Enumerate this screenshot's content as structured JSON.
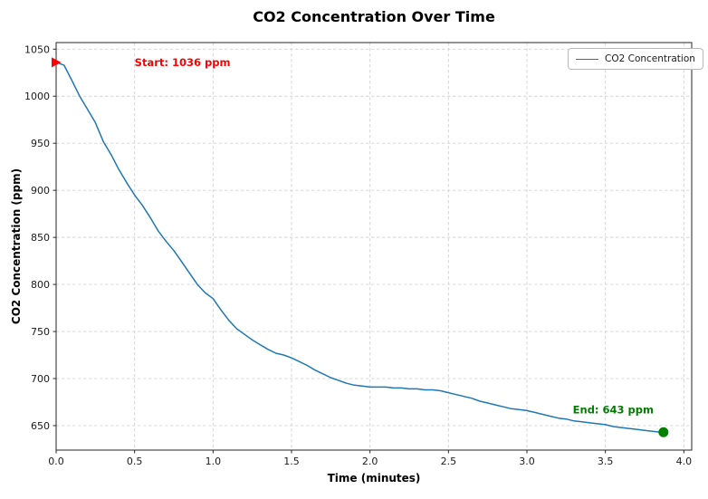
{
  "chart_data": {
    "type": "line",
    "title": "CO2 Concentration Over Time",
    "xlabel": "Time (minutes)",
    "ylabel": "CO2 Concentration (ppm)",
    "xlim": [
      0,
      4.05
    ],
    "ylim": [
      624,
      1057
    ],
    "xtick_labels": [
      "0.0",
      "0.5",
      "1.0",
      "1.5",
      "2.0",
      "2.5",
      "3.0",
      "3.5",
      "4.0"
    ],
    "xtick_values": [
      0,
      0.5,
      1,
      1.5,
      2,
      2.5,
      3,
      3.5,
      4
    ],
    "ytick_values": [
      650,
      700,
      750,
      800,
      850,
      900,
      950,
      1000,
      1050
    ],
    "grid": true,
    "grid_style": "dashed",
    "legend": {
      "position": "upper right",
      "label": "CO2 Concentration",
      "line_color": "#1f77b4"
    },
    "series": [
      {
        "name": "CO2 Concentration",
        "color": "#1f77b4",
        "x": [
          0.0,
          0.05,
          0.1,
          0.15,
          0.2,
          0.25,
          0.3,
          0.35,
          0.4,
          0.45,
          0.5,
          0.55,
          0.6,
          0.65,
          0.7,
          0.75,
          0.8,
          0.85,
          0.9,
          0.95,
          1.0,
          1.05,
          1.1,
          1.15,
          1.2,
          1.25,
          1.3,
          1.35,
          1.4,
          1.45,
          1.5,
          1.55,
          1.6,
          1.65,
          1.7,
          1.75,
          1.8,
          1.85,
          1.9,
          1.95,
          2.0,
          2.05,
          2.1,
          2.15,
          2.2,
          2.25,
          2.3,
          2.35,
          2.4,
          2.45,
          2.5,
          2.55,
          2.6,
          2.65,
          2.7,
          2.75,
          2.8,
          2.85,
          2.9,
          2.95,
          3.0,
          3.05,
          3.1,
          3.15,
          3.2,
          3.25,
          3.3,
          3.35,
          3.4,
          3.45,
          3.5,
          3.55,
          3.6,
          3.65,
          3.7,
          3.75,
          3.8,
          3.85,
          3.87
        ],
        "y": [
          1036,
          1033,
          1017,
          1000,
          986,
          972,
          952,
          938,
          922,
          908,
          895,
          884,
          871,
          857,
          846,
          836,
          824,
          812,
          800,
          791,
          785,
          773,
          762,
          753,
          747,
          741,
          736,
          731,
          727,
          725,
          722,
          718,
          714,
          709,
          705,
          701,
          698,
          695,
          693,
          692,
          691,
          691,
          691,
          690,
          690,
          689,
          689,
          688,
          688,
          687,
          685,
          683,
          681,
          679,
          676,
          674,
          672,
          670,
          668,
          667,
          666,
          664,
          662,
          660,
          658,
          657,
          655,
          654,
          653,
          652,
          651,
          649,
          648,
          647,
          646,
          645,
          644,
          643,
          643
        ]
      }
    ],
    "annotations": [
      {
        "id": "start",
        "text": "Start: 1036 ppm",
        "color": "#ff0000",
        "text_x": 0.5,
        "text_y": 1036,
        "anchor": "start",
        "marker": "triangle-right",
        "marker_x": 0,
        "marker_y": 1036,
        "marker_color": "#ff0000"
      },
      {
        "id": "end",
        "text": "End: 643 ppm",
        "color": "#008000",
        "text_x": 3.55,
        "text_y": 667,
        "anchor": "middle",
        "marker": "circle",
        "marker_x": 3.87,
        "marker_y": 643,
        "marker_color": "#008000"
      }
    ],
    "start_value_ppm": 1036,
    "end_value_ppm": 643
  }
}
